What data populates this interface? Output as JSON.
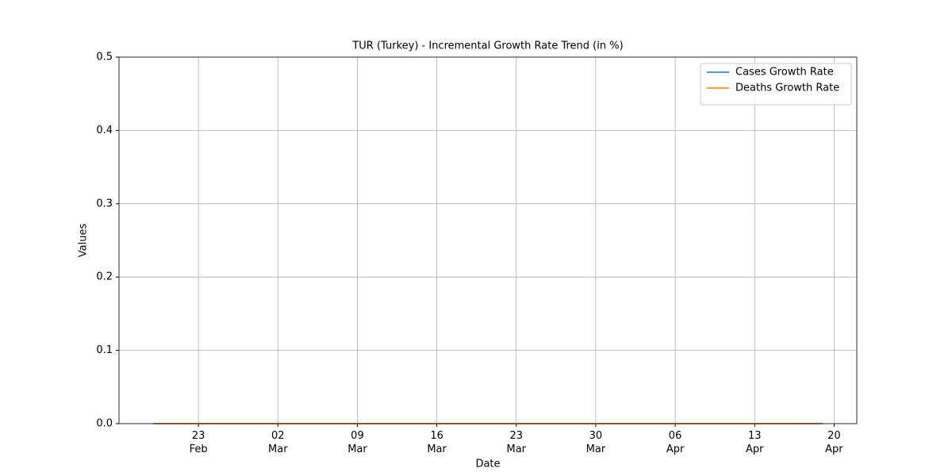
{
  "chart_data": {
    "type": "line",
    "title": "TUR (Turkey) - Incremental Growth Rate Trend (in %)",
    "x_label": "Date",
    "y_label": "Values",
    "x": [
      "19 Feb",
      "20 Feb",
      "21 Feb",
      "22 Feb",
      "23 Feb",
      "24 Feb",
      "25 Feb",
      "26 Feb",
      "27 Feb",
      "28 Feb",
      "01 Mar",
      "02 Mar",
      "03 Mar",
      "04 Mar",
      "05 Mar",
      "06 Mar",
      "07 Mar",
      "08 Mar",
      "09 Mar",
      "10 Mar",
      "11 Mar",
      "12 Mar",
      "13 Mar",
      "14 Mar",
      "15 Mar",
      "16 Mar",
      "17 Mar",
      "18 Mar",
      "19 Mar",
      "20 Mar",
      "21 Mar",
      "22 Mar",
      "23 Mar",
      "24 Mar",
      "25 Mar",
      "26 Mar",
      "27 Mar",
      "28 Mar",
      "29 Mar",
      "30 Mar",
      "31 Mar",
      "01 Apr",
      "02 Apr",
      "03 Apr",
      "04 Apr",
      "05 Apr",
      "06 Apr",
      "07 Apr",
      "08 Apr",
      "09 Apr",
      "10 Apr",
      "11 Apr",
      "12 Apr",
      "13 Apr",
      "14 Apr",
      "15 Apr",
      "16 Apr",
      "17 Apr",
      "18 Apr",
      "19 Apr"
    ],
    "series": [
      {
        "name": "Cases Growth Rate",
        "color": "#1f77b4",
        "values": [
          0,
          0,
          0,
          0,
          0,
          0,
          0,
          0,
          0,
          0,
          0,
          0,
          0,
          0,
          0,
          0,
          0,
          0,
          0,
          0,
          0,
          0,
          0,
          0,
          0,
          0,
          0,
          0,
          0,
          0,
          0,
          0,
          0,
          0,
          0,
          0,
          0,
          0,
          0,
          0,
          0,
          0,
          0,
          0,
          0,
          0,
          0,
          0,
          0,
          0,
          0,
          0,
          0,
          0,
          0,
          0,
          0,
          0,
          0,
          0
        ]
      },
      {
        "name": "Deaths Growth Rate",
        "color": "#ff7f0e",
        "values": [
          0,
          0,
          0,
          0,
          0,
          0,
          0,
          0,
          0,
          0,
          0,
          0,
          0,
          0,
          0,
          0,
          0,
          0,
          0,
          0,
          0,
          0,
          0,
          0,
          0,
          0,
          0,
          0,
          0,
          0,
          0,
          0,
          0,
          0,
          0,
          0,
          0,
          0,
          0,
          0,
          0,
          0,
          0,
          0,
          0,
          0,
          0,
          0,
          0,
          0,
          0,
          0,
          0,
          0,
          0,
          0,
          0,
          0,
          0,
          0
        ]
      }
    ],
    "xlim": [
      "16 Feb",
      "22 Apr"
    ],
    "xticks": [
      "23 Feb",
      "02 Mar",
      "09 Mar",
      "16 Mar",
      "23 Mar",
      "30 Mar",
      "06 Apr",
      "13 Apr",
      "20 Apr"
    ],
    "ylim": [
      0,
      0.5
    ],
    "yticks": [
      {
        "value": 0,
        "label": "0.0"
      },
      0.1,
      0.2,
      0.3,
      0.4,
      0.5
    ],
    "grid": true,
    "legend": "upper right"
  }
}
